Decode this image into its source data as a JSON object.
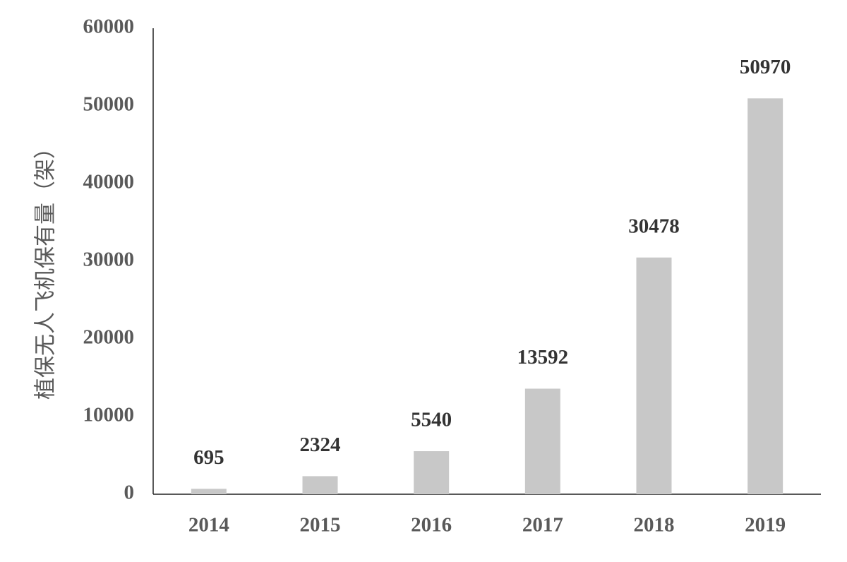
{
  "chart_data": {
    "type": "bar",
    "y_label": "植保无人飞机保有量（架）",
    "categories": [
      "2014",
      "2015",
      "2016",
      "2017",
      "2018",
      "2019"
    ],
    "values": [
      695,
      2324,
      5540,
      13592,
      30478,
      50970
    ],
    "color": "#c8c8c8",
    "ylim": [
      0,
      60000
    ],
    "yticks": [
      0,
      10000,
      20000,
      30000,
      40000,
      50000,
      60000
    ],
    "grid": false
  }
}
